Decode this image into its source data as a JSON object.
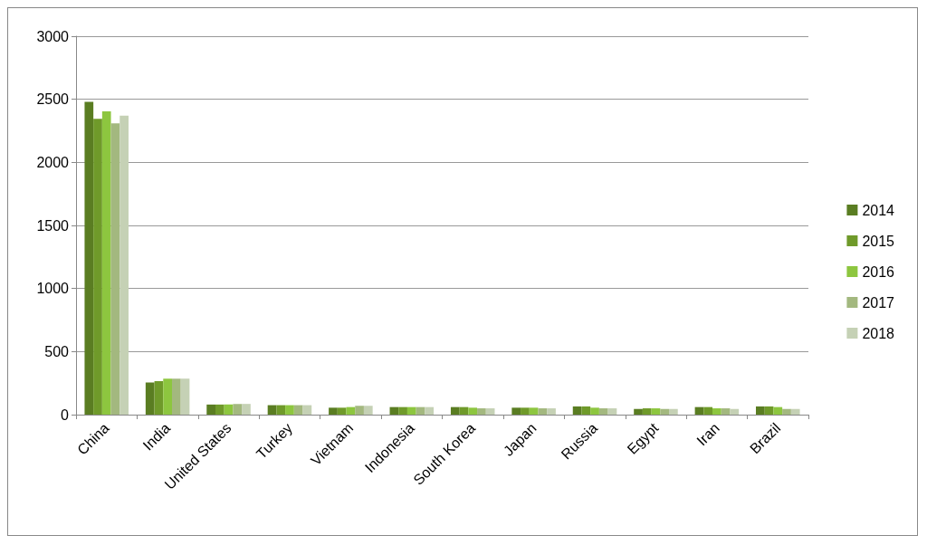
{
  "chart_data": {
    "type": "bar",
    "categories": [
      "China",
      "India",
      "United States",
      "Turkey",
      "Vietnam",
      "Indonesia",
      "South Korea",
      "Japan",
      "Russia",
      "Egypt",
      "Iran",
      "Brazil"
    ],
    "series": [
      {
        "name": "2014",
        "color": "#5a7d22",
        "values": [
          2480,
          255,
          80,
          75,
          55,
          60,
          60,
          55,
          65,
          45,
          60,
          65
        ]
      },
      {
        "name": "2015",
        "color": "#6f9a2a",
        "values": [
          2345,
          265,
          80,
          75,
          55,
          60,
          60,
          55,
          65,
          50,
          60,
          65
        ]
      },
      {
        "name": "2016",
        "color": "#8dc63f",
        "values": [
          2405,
          285,
          80,
          75,
          60,
          60,
          55,
          55,
          55,
          50,
          50,
          60
        ]
      },
      {
        "name": "2017",
        "color": "#a3b87f",
        "values": [
          2310,
          285,
          85,
          75,
          70,
          60,
          50,
          50,
          50,
          45,
          50,
          45
        ]
      },
      {
        "name": "2018",
        "color": "#c5d1b5",
        "values": [
          2370,
          285,
          85,
          75,
          70,
          60,
          50,
          50,
          50,
          45,
          45,
          45
        ]
      }
    ],
    "ylim": [
      0,
      3000
    ],
    "yticks": [
      0,
      500,
      1000,
      1500,
      2000,
      2500,
      3000
    ],
    "grid": "y",
    "legend": "right"
  }
}
